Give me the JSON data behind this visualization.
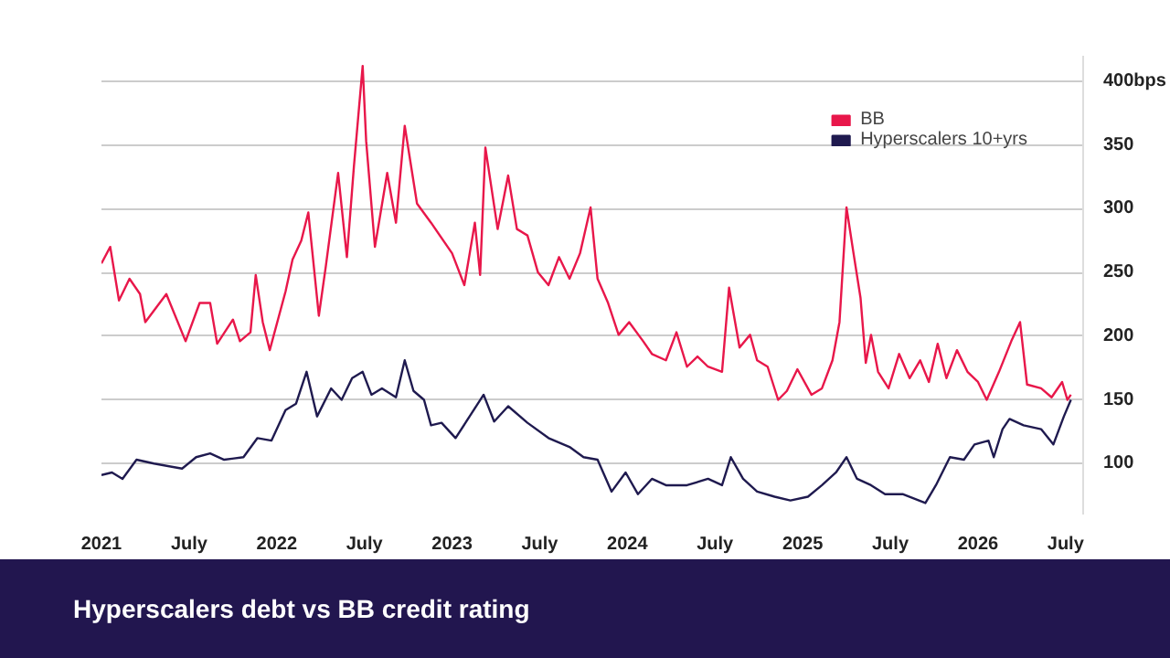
{
  "chart_data": {
    "type": "line",
    "title": "Hyperscalers debt vs BB credit rating",
    "xlim": [
      2021,
      2026.6
    ],
    "ylim": [
      60,
      420
    ],
    "xticks": [
      {
        "value": 2021,
        "label": "2021"
      },
      {
        "value": 2021.5,
        "label": "July"
      },
      {
        "value": 2022,
        "label": "2022"
      },
      {
        "value": 2022.5,
        "label": "July"
      },
      {
        "value": 2023,
        "label": "2023"
      },
      {
        "value": 2023.5,
        "label": "July"
      },
      {
        "value": 2024,
        "label": "2024"
      },
      {
        "value": 2024.5,
        "label": "July"
      },
      {
        "value": 2025,
        "label": "2025"
      },
      {
        "value": 2025.5,
        "label": "July"
      },
      {
        "value": 2026,
        "label": "2026"
      },
      {
        "value": 2026.5,
        "label": "July"
      }
    ],
    "yticks": [
      100,
      150,
      200,
      250,
      300,
      350,
      {
        "value": 400,
        "label": "400bps"
      }
    ],
    "grid": "y",
    "legend": "top right",
    "marker": "none",
    "line_style": "solid",
    "series": [
      {
        "name": "BB",
        "color": "#e8174a",
        "x": [
          2021.0,
          2021.05,
          2021.1,
          2021.16,
          2021.22,
          2021.25,
          2021.37,
          2021.48,
          2021.56,
          2021.62,
          2021.66,
          2021.75,
          2021.79,
          2021.85,
          2021.88,
          2021.92,
          2021.96,
          2022.05,
          2022.09,
          2022.14,
          2022.18,
          2022.24,
          2022.28,
          2022.35,
          2022.4,
          2022.44,
          2022.49,
          2022.51,
          2022.56,
          2022.63,
          2022.68,
          2022.73,
          2022.8,
          2022.88,
          2023.0,
          2023.07,
          2023.13,
          2023.16,
          2023.19,
          2023.26,
          2023.32,
          2023.37,
          2023.43,
          2023.49,
          2023.55,
          2023.61,
          2023.67,
          2023.73,
          2023.79,
          2023.83,
          2023.89,
          2023.95,
          2024.01,
          2024.09,
          2024.14,
          2024.22,
          2024.28,
          2024.34,
          2024.4,
          2024.46,
          2024.54,
          2024.58,
          2024.64,
          2024.7,
          2024.74,
          2024.8,
          2024.86,
          2024.91,
          2024.97,
          2025.05,
          2025.11,
          2025.17,
          2025.21,
          2025.25,
          2025.29,
          2025.33,
          2025.36,
          2025.39,
          2025.43,
          2025.49,
          2025.55,
          2025.61,
          2025.67,
          2025.72,
          2025.77,
          2025.82,
          2025.88,
          2025.94,
          2026.0,
          2026.05,
          2026.12,
          2026.19,
          2026.24,
          2026.28,
          2026.36,
          2026.42,
          2026.48,
          2026.51,
          2026.53
        ],
        "values": [
          257,
          270,
          228,
          245,
          233,
          211,
          233,
          196,
          226,
          226,
          194,
          213,
          196,
          203,
          248,
          211,
          189,
          235,
          260,
          275,
          297,
          216,
          255,
          328,
          262,
          333,
          412,
          353,
          270,
          328,
          289,
          365,
          304,
          289,
          265,
          240,
          289,
          248,
          348,
          284,
          326,
          284,
          279,
          250,
          240,
          262,
          245,
          265,
          301,
          245,
          226,
          201,
          211,
          196,
          186,
          181,
          203,
          176,
          184,
          176,
          172,
          238,
          191,
          201,
          181,
          176,
          150,
          157,
          174,
          154,
          159,
          181,
          211,
          301,
          265,
          230,
          179,
          201,
          172,
          159,
          186,
          167,
          181,
          164,
          194,
          167,
          189,
          172,
          164,
          150,
          172,
          196,
          211,
          162,
          159,
          152,
          164,
          150,
          154
        ]
      },
      {
        "name": "Hyperscalers 10+yrs",
        "color": "#1f1a4f",
        "x": [
          2021.0,
          2021.06,
          2021.12,
          2021.2,
          2021.3,
          2021.46,
          2021.54,
          2021.62,
          2021.7,
          2021.81,
          2021.89,
          2021.97,
          2022.05,
          2022.11,
          2022.17,
          2022.23,
          2022.31,
          2022.37,
          2022.43,
          2022.49,
          2022.54,
          2022.6,
          2022.68,
          2022.73,
          2022.78,
          2022.84,
          2022.88,
          2022.94,
          2023.02,
          2023.1,
          2023.18,
          2023.24,
          2023.32,
          2023.43,
          2023.55,
          2023.67,
          2023.75,
          2023.83,
          2023.91,
          2023.99,
          2024.06,
          2024.14,
          2024.22,
          2024.34,
          2024.46,
          2024.54,
          2024.59,
          2024.66,
          2024.74,
          2024.84,
          2024.93,
          2025.03,
          2025.11,
          2025.19,
          2025.25,
          2025.31,
          2025.39,
          2025.47,
          2025.57,
          2025.7,
          2025.76,
          2025.84,
          2025.92,
          2025.98,
          2026.06,
          2026.09,
          2026.14,
          2026.18,
          2026.26,
          2026.36,
          2026.43,
          2026.49,
          2026.53
        ],
        "values": [
          91,
          93,
          88,
          103,
          100,
          96,
          105,
          108,
          103,
          105,
          120,
          118,
          142,
          147,
          172,
          137,
          159,
          150,
          167,
          172,
          154,
          159,
          152,
          181,
          157,
          150,
          130,
          132,
          120,
          137,
          154,
          133,
          145,
          132,
          120,
          113,
          105,
          103,
          78,
          93,
          76,
          88,
          83,
          83,
          88,
          83,
          105,
          88,
          78,
          74,
          71,
          74,
          83,
          93,
          105,
          88,
          83,
          76,
          76,
          69,
          83,
          105,
          103,
          115,
          118,
          105,
          127,
          135,
          130,
          127,
          115,
          137,
          150
        ]
      }
    ]
  }
}
